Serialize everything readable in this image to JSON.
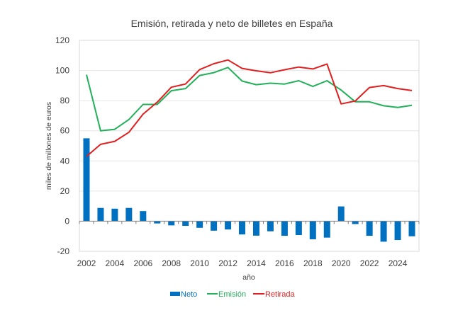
{
  "chart_data": {
    "type": "bar+line",
    "title": "Emisión, retirada y neto de billetes en España",
    "xlabel": "año",
    "ylabel": "miles de millones de euros",
    "ylim": [
      -20,
      120
    ],
    "yticks": [
      -20,
      0,
      20,
      40,
      60,
      80,
      100,
      120
    ],
    "ytick_labels": [
      "-20",
      "0",
      "20",
      "40",
      "60",
      "80",
      "100",
      "120"
    ],
    "xtick_labels": [
      "2002",
      "2004",
      "2006",
      "2008",
      "2010",
      "2012",
      "2014",
      "2016",
      "2018",
      "2020",
      "2022",
      "2024"
    ],
    "grid": true,
    "legend_position": "bottom",
    "categories": [
      "2002",
      "2003",
      "2004",
      "2005",
      "2006",
      "2007",
      "2008",
      "2009",
      "2010",
      "2011",
      "2012",
      "2013",
      "2014",
      "2015",
      "2016",
      "2017",
      "2018",
      "2019",
      "2020",
      "2021",
      "2022",
      "2023",
      "2024",
      "2025"
    ],
    "series": [
      {
        "name": "Neto",
        "type": "bar",
        "color": "#0070C0",
        "values": [
          55,
          8.8,
          8.3,
          8.8,
          6.7,
          -1.5,
          -2.8,
          -3.1,
          -4.4,
          -6.3,
          -5.5,
          -8.8,
          -9.6,
          -6.7,
          -9.7,
          -9.2,
          -12,
          -10.9,
          9.8,
          -1.9,
          -9.7,
          -13.6,
          -12.5,
          -10
        ]
      },
      {
        "name": "Emisión",
        "type": "line",
        "color": "#22B05A",
        "values": [
          97.2,
          60,
          61,
          67.5,
          77.5,
          77.5,
          86.6,
          88,
          96.7,
          98.6,
          102,
          93,
          90.6,
          91.6,
          91,
          93.2,
          89.4,
          93.2,
          87,
          79.2,
          79.2,
          76.6,
          75.5,
          76.9
        ]
      },
      {
        "name": "Retirada",
        "type": "line",
        "color": "#E02020",
        "values": [
          43,
          51,
          53,
          59,
          71,
          79,
          88.9,
          91,
          100.6,
          104.5,
          107,
          101.4,
          99.8,
          98.5,
          100.5,
          102.3,
          101,
          104.3,
          77.8,
          79.8,
          88.7,
          90,
          88,
          86.7
        ]
      }
    ]
  }
}
